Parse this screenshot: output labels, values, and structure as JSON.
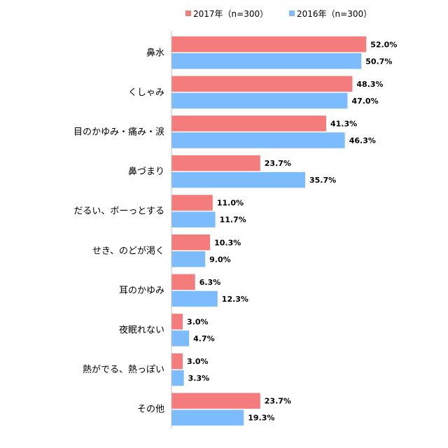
{
  "chart_data": {
    "type": "bar",
    "orientation": "horizontal",
    "categories": [
      "鼻水",
      "くしゃみ",
      "目のかゆみ・痛み・涙",
      "鼻づまり",
      "だるい、ボーっとする",
      "せき、のどが渇く",
      "耳のかゆみ",
      "夜眠れない",
      "熱がでる、熱っぽい",
      "その他"
    ],
    "series": [
      {
        "name": "2017年（n=300）",
        "color": "#f47c7c",
        "values": [
          52.0,
          48.3,
          41.3,
          23.7,
          11.0,
          10.3,
          6.3,
          3.0,
          3.0,
          23.7
        ],
        "labels": [
          "52.0%",
          "48.3%",
          "41.3%",
          "23.7%",
          "11.0%",
          "10.3%",
          "6.3%",
          "3.0%",
          "3.0%",
          "23.7%"
        ]
      },
      {
        "name": "2016年（n=300）",
        "color": "#7cbcfc",
        "values": [
          50.7,
          47.0,
          46.3,
          35.7,
          11.7,
          9.0,
          12.3,
          4.7,
          3.3,
          19.3
        ],
        "labels": [
          "50.7%",
          "47.0%",
          "46.3%",
          "35.7%",
          "11.7%",
          "9.0%",
          "12.3%",
          "4.7%",
          "3.3%",
          "19.3%"
        ]
      }
    ],
    "legend_position": "top",
    "grid": false
  }
}
